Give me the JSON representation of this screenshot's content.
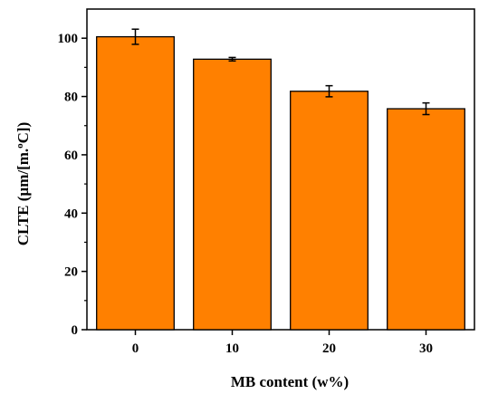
{
  "chart_data": {
    "type": "bar",
    "categories": [
      "0",
      "10",
      "20",
      "30"
    ],
    "values": [
      100.5,
      92.8,
      81.8,
      75.8
    ],
    "errors": [
      2.6,
      0.6,
      1.9,
      2.0
    ],
    "xlabel": "MB content (w%)",
    "ylabel_parts": {
      "prefix": "CLTE (µm/[m.",
      "sup": "o",
      "suffix": "C])"
    },
    "ylim": [
      0,
      110
    ],
    "yticks": [
      0,
      20,
      40,
      60,
      80,
      100
    ],
    "grid": false,
    "legend": "none",
    "bar_color": "#FF8000",
    "edge_color": "#000000"
  }
}
